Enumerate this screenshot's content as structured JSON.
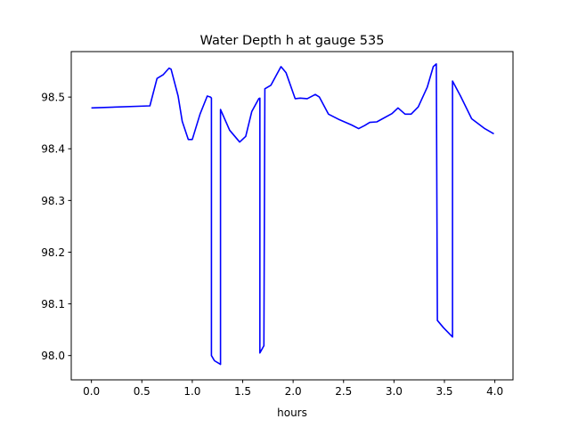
{
  "chart_data": {
    "type": "line",
    "title": "Water Depth h at gauge 535",
    "xlabel": "hours",
    "ylabel": "",
    "xlim": [
      -0.2,
      4.18
    ],
    "ylim": [
      97.953,
      98.588
    ],
    "xticks": [
      0.0,
      0.5,
      1.0,
      1.5,
      2.0,
      2.5,
      3.0,
      3.5,
      4.0
    ],
    "xtick_labels": [
      "0.0",
      "0.5",
      "1.0",
      "1.5",
      "2.0",
      "2.5",
      "3.0",
      "3.5",
      "4.0"
    ],
    "yticks": [
      98.0,
      98.1,
      98.2,
      98.3,
      98.4,
      98.5
    ],
    "ytick_labels": [
      "98.0",
      "98.1",
      "98.2",
      "98.3",
      "98.4",
      "98.5"
    ],
    "grid": false,
    "series": [
      {
        "name": "h",
        "color": "#0000ff",
        "x": [
          0,
          0.58,
          0.65,
          0.71,
          0.77,
          0.79,
          0.86,
          0.9,
          0.96,
          1.0,
          1.077,
          1.148,
          1.18,
          1.19,
          1.19,
          1.22,
          1.28,
          1.28,
          1.37,
          1.47,
          1.53,
          1.59,
          1.66,
          1.67,
          1.67,
          1.71,
          1.72,
          1.78,
          1.88,
          1.93,
          2.02,
          2.07,
          2.14,
          2.22,
          2.26,
          2.35,
          2.45,
          2.58,
          2.65,
          2.71,
          2.76,
          2.83,
          2.98,
          3.04,
          3.11,
          3.17,
          3.24,
          3.33,
          3.39,
          3.42,
          3.43,
          3.49,
          3.58,
          3.58,
          3.66,
          3.77,
          3.9,
          3.99
        ],
        "y": [
          98.479,
          98.483,
          98.536,
          98.543,
          98.556,
          98.554,
          98.502,
          98.453,
          98.418,
          98.418,
          98.467,
          98.502,
          98.5,
          98.498,
          98.0,
          97.99,
          97.983,
          98.476,
          98.436,
          98.413,
          98.424,
          98.472,
          98.497,
          98.498,
          98.005,
          98.019,
          98.516,
          98.523,
          98.559,
          98.547,
          98.497,
          98.498,
          98.497,
          98.505,
          98.5,
          98.467,
          98.457,
          98.446,
          98.439,
          98.445,
          98.451,
          98.452,
          98.468,
          98.479,
          98.467,
          98.467,
          98.481,
          98.519,
          98.559,
          98.564,
          98.068,
          98.054,
          98.036,
          98.531,
          98.502,
          98.458,
          98.439,
          98.429
        ]
      }
    ]
  }
}
